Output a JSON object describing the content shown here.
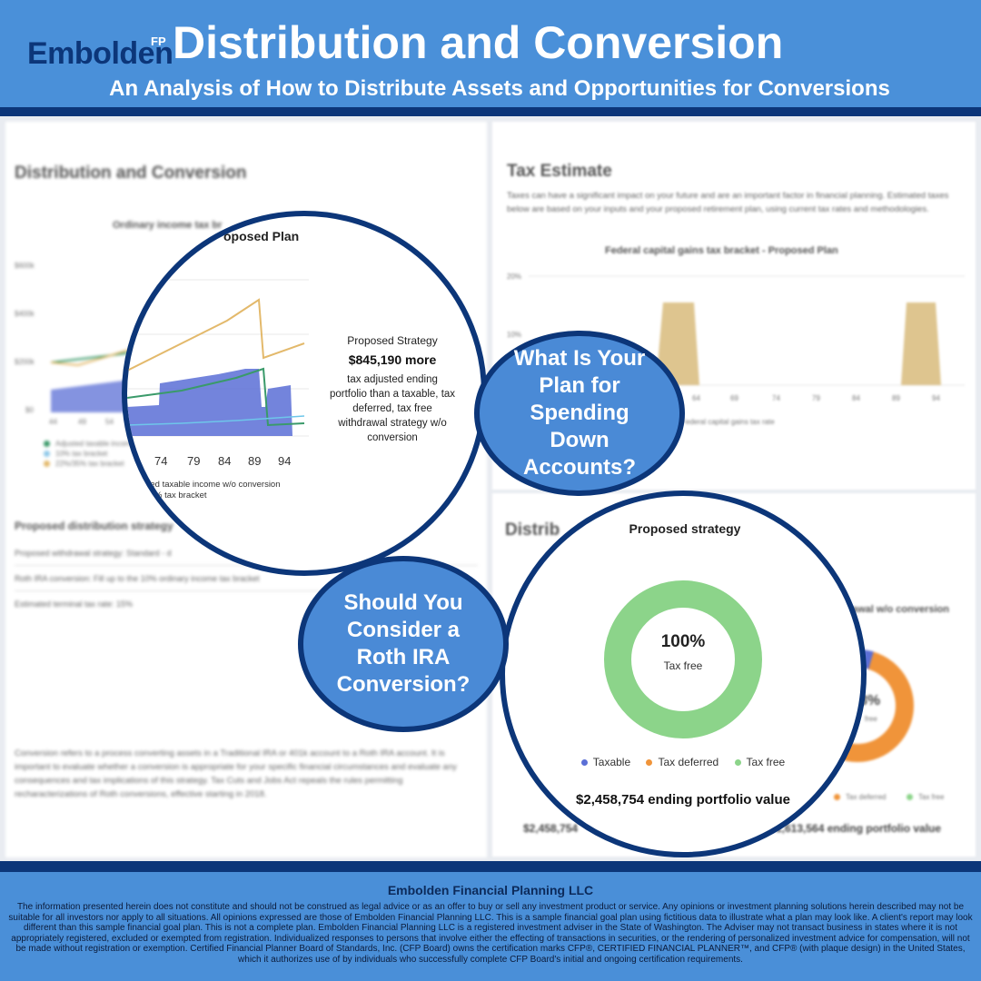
{
  "header": {
    "logo": "Embolden",
    "logo_sup": "FP",
    "title": "Distribution and Conversion",
    "subtitle": "An Analysis of How to Distribute Assets and Opportunities for Conversions"
  },
  "left_panel": {
    "title": "Distribution and Conversion",
    "chart_title": "Ordinary income tax br",
    "y_ticks": [
      "$600k",
      "$400k",
      "$200k",
      "$0"
    ],
    "x_ticks": [
      "44",
      "49",
      "54"
    ],
    "legend": [
      "Adjusted taxable income",
      "10% tax bracket",
      "22%/35% tax bracket"
    ],
    "strategy_title": "Proposed distribution strategy",
    "strategy_lines": [
      "Proposed withdrawal strategy: Standard - d",
      "Roth IRA conversion: Fill up to the 10% ordinary income tax bracket",
      "Estimated terminal tax rate: 15%"
    ],
    "conversion_text": "Conversion refers to a process converting assets in a Traditional IRA or 401k account to a Roth IRA account. It is important to evaluate whether a conversion is appropriate for your specific financial circumstances and evaluate any consequences and tax implications of this strategy. Tax Cuts and Jobs Act repeals the rules permitting recharacterizations of Roth conversions, effective starting in 2018."
  },
  "tax_panel": {
    "title": "Tax Estimate",
    "text": "Taxes can have a significant impact on your future and are an important factor in financial planning. Estimated taxes below are based on your inputs and your proposed retirement plan, using current tax rates and methodologies.",
    "chart_title": "Federal capital gains tax bracket - Proposed Plan",
    "y_ticks": [
      "20%",
      "10%"
    ],
    "x_ticks": [
      "64",
      "69",
      "74",
      "79",
      "84",
      "89",
      "94"
    ],
    "legend": "Federal capital gains tax rate"
  },
  "dist_panel": {
    "title": "Distrib",
    "chart_caption": "awal w/o conversion",
    "donut_pct": "8%",
    "donut_label": "free",
    "legend": [
      "Tax deferred",
      "Tax free"
    ],
    "left_value": "$2,458,754",
    "right_value": "1,613,564 ending portfolio value"
  },
  "zoom_chart": {
    "title": "oposed Plan",
    "x_ticks": [
      "74",
      "79",
      "84",
      "89",
      "94"
    ],
    "legend_lines": [
      "sted taxable income w/o conversion",
      "% tax bracket"
    ],
    "strategy_label": "Proposed Strategy",
    "strategy_amount": "$845,190 more",
    "strategy_desc": "tax adjusted ending portfolio than a taxable, tax deferred, tax free withdrawal strategy w/o conversion"
  },
  "zoom_donut": {
    "title": "Proposed strategy",
    "center_value": "100%",
    "center_label": "Tax free",
    "legend": [
      "Taxable",
      "Tax deferred",
      "Tax free"
    ],
    "ending_value": "$2,458,754 ending portfolio value",
    "chart_data": {
      "type": "pie",
      "title": "Proposed strategy",
      "categories": [
        "Taxable",
        "Tax deferred",
        "Tax free"
      ],
      "values": [
        0,
        0,
        100
      ]
    }
  },
  "bubbles": {
    "spending": "What Is Your Plan for Spending Down Accounts?",
    "roth": "Should You Consider a Roth IRA Conversion?"
  },
  "colors": {
    "header": "#4a90d9",
    "navy": "#0c3679",
    "taxable": "#5b6fd6",
    "tax_deferred": "#f0943a",
    "tax_free": "#8cd48a"
  },
  "footer": {
    "company": "Embolden Financial Planning LLC",
    "disclaimer": "The information presented herein does not constitute and should not be construed as legal advice or as an offer to buy or sell any investment product or service. Any opinions or investment planning solutions herein described may not be suitable for all investors nor apply to all situations. All opinions expressed are those of Embolden Financial Planning LLC. This is a sample financial goal plan using fictitious data to illustrate what a plan may look like. A client's report may look different than this sample financial goal plan. This is not a complete plan. Embolden Financial Planning LLC is a registered investment adviser in the State of Washington. The Adviser may not transact business in states where it is not appropriately registered, excluded or exempted from registration. Individualized responses to persons that involve either the effecting of transactions in securities, or the rendering of personalized investment advice for compensation, will not be made without registration or exemption. Certified Financial Planner Board of Standards, Inc. (CFP Board) owns the certification marks CFP®, CERTIFIED FINANCIAL PLANNER™, and CFP® (with plaque design) in the United States, which it authorizes use of by individuals who successfully complete CFP Board's initial and ongoing certification requirements."
  }
}
